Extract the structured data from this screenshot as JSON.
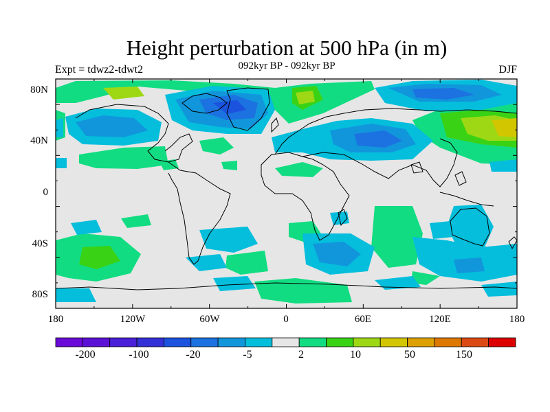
{
  "title": "Height perturbation at 500 hPa (in m)",
  "subtitle_left": "Expt = tdwz2-tdwt2",
  "subtitle_center": "092kyr BP - 092kyr BP",
  "subtitle_right": "DJF",
  "y_ticks": [
    "80N",
    "40N",
    "0",
    "40S",
    "80S"
  ],
  "x_ticks": [
    "180",
    "120W",
    "60W",
    "0",
    "60E",
    "120E",
    "180"
  ],
  "colorbar": {
    "colors": [
      "#6a0ad8",
      "#5c12d6",
      "#4a1fd8",
      "#3230d6",
      "#1b52de",
      "#1c72e0",
      "#1196dc",
      "#04bedc",
      "#e6e6e6",
      "#12dc82",
      "#3ad214",
      "#9ed814",
      "#d2c600",
      "#dca000",
      "#dc7800",
      "#dc4a14",
      "#dc0000"
    ],
    "labels": [
      "-200",
      "-100",
      "-20",
      "-5",
      "2",
      "10",
      "50",
      "150"
    ]
  },
  "map": {
    "background": "#e6e6e6",
    "colors": {
      "neg_light": "#04bedc",
      "neg_mid": "#1196dc",
      "neg_dark": "#1c72e0",
      "neg_deep": "#1b52de",
      "pos_light": "#12dc82",
      "pos_mid": "#3ad214",
      "pos_yel": "#9ed814",
      "pos_gold": "#d2c600"
    }
  }
}
